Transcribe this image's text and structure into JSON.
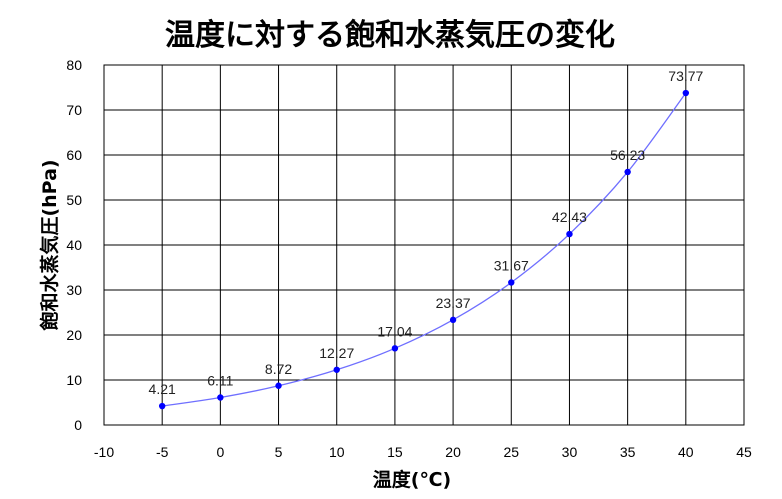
{
  "chart_data": {
    "type": "line",
    "title": "温度に対する飽和水蒸気圧の変化",
    "xlabel": "温度(℃)",
    "ylabel": "飽和水蒸気圧(hPa)",
    "xlim": [
      -10,
      45
    ],
    "ylim": [
      0,
      80
    ],
    "x_ticks": [
      "-10",
      "-5",
      "0",
      "5",
      "10",
      "15",
      "20",
      "25",
      "30",
      "35",
      "40",
      "45"
    ],
    "y_ticks": [
      "0",
      "10",
      "20",
      "30",
      "40",
      "50",
      "60",
      "70",
      "80"
    ],
    "grid": true,
    "series": [
      {
        "x": [
          -5,
          0,
          5,
          10,
          15,
          20,
          25,
          30,
          35,
          40
        ],
        "values": [
          4.21,
          6.11,
          8.72,
          12.27,
          17.04,
          23.37,
          31.67,
          42.43,
          56.23,
          73.77
        ],
        "labels": [
          "4.21",
          "6.11",
          "8.72",
          "12.27",
          "17.04",
          "23.37",
          "31.67",
          "42.43",
          "56.23",
          "73.77"
        ],
        "color": "#0000ff",
        "line_color": "#6f6fff"
      }
    ]
  }
}
